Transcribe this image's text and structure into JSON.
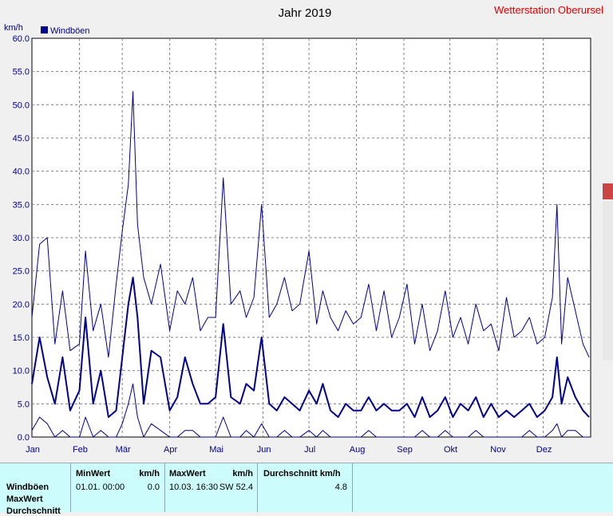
{
  "chart_data": {
    "type": "line",
    "title": "Jahr 2019",
    "ylabel": "km/h",
    "ylim": [
      0,
      60
    ],
    "yticks": [
      "0.0",
      "5.0",
      "10.0",
      "15.0",
      "20.0",
      "25.0",
      "30.0",
      "35.0",
      "40.0",
      "45.0",
      "50.0",
      "55.0",
      "60.0"
    ],
    "xlim": [
      0,
      365
    ],
    "months": [
      "Jan",
      "Feb",
      "Mär",
      "Apr",
      "Mai",
      "Jun",
      "Jul",
      "Aug",
      "Sep",
      "Okt",
      "Nov",
      "Dez"
    ],
    "month_starts": [
      0,
      31,
      59,
      90,
      120,
      151,
      181,
      212,
      243,
      273,
      304,
      334
    ],
    "grid": true,
    "legend": "top-left",
    "colors": {
      "series": "#00008b",
      "grid": "#808080",
      "title": "#000000"
    },
    "series": [
      {
        "name": "Windböen",
        "x": [
          0,
          5,
          10,
          15,
          20,
          25,
          31,
          35,
          40,
          45,
          50,
          55,
          59,
          63,
          66,
          69,
          73,
          78,
          84,
          90,
          95,
          100,
          105,
          110,
          115,
          120,
          125,
          130,
          136,
          140,
          145,
          150,
          155,
          160,
          165,
          170,
          175,
          181,
          186,
          190,
          195,
          200,
          205,
          210,
          215,
          220,
          225,
          230,
          235,
          240,
          245,
          250,
          255,
          260,
          265,
          270,
          275,
          280,
          285,
          290,
          295,
          300,
          305,
          310,
          315,
          320,
          325,
          330,
          335,
          340,
          343,
          346,
          350,
          355,
          360,
          364
        ],
        "max": [
          18,
          29,
          30,
          14,
          22,
          13,
          14,
          28,
          16,
          20,
          12,
          23,
          31,
          38,
          52,
          32,
          24,
          20,
          26,
          16,
          22,
          20,
          24,
          16,
          18,
          18,
          39,
          20,
          22,
          18,
          21,
          35,
          18,
          20,
          24,
          19,
          20,
          28,
          17,
          22,
          18,
          16,
          19,
          17,
          18,
          23,
          16,
          22,
          15,
          18,
          23,
          14,
          20,
          13,
          16,
          22,
          15,
          18,
          14,
          20,
          16,
          17,
          13,
          21,
          15,
          16,
          18,
          14,
          15,
          21,
          35,
          14,
          24,
          19,
          14,
          12
        ],
        "avg": [
          8,
          15,
          9,
          5,
          12,
          4,
          7,
          18,
          5,
          10,
          3,
          4,
          12,
          20,
          24,
          18,
          5,
          13,
          12,
          4,
          6,
          12,
          8,
          5,
          5,
          6,
          17,
          6,
          5,
          8,
          7,
          15,
          5,
          4,
          6,
          5,
          4,
          7,
          5,
          8,
          4,
          3,
          5,
          4,
          4,
          6,
          4,
          5,
          4,
          4,
          5,
          3,
          6,
          3,
          4,
          6,
          3,
          5,
          4,
          6,
          3,
          5,
          3,
          4,
          3,
          4,
          5,
          3,
          4,
          6,
          12,
          5,
          9,
          6,
          4,
          3
        ],
        "min": [
          1,
          3,
          2,
          0,
          1,
          0,
          0,
          3,
          0,
          1,
          0,
          0,
          2,
          5,
          8,
          3,
          0,
          2,
          1,
          0,
          0,
          1,
          1,
          0,
          0,
          0,
          3,
          0,
          0,
          1,
          0,
          2,
          0,
          0,
          1,
          0,
          0,
          1,
          0,
          1,
          0,
          0,
          0,
          0,
          0,
          1,
          0,
          0,
          0,
          0,
          0,
          0,
          1,
          0,
          0,
          1,
          0,
          0,
          0,
          1,
          0,
          0,
          0,
          0,
          0,
          0,
          1,
          0,
          0,
          1,
          2,
          0,
          1,
          1,
          0,
          0
        ]
      }
    ]
  },
  "header": {
    "station": "Wetterstation Oberursel"
  },
  "stats": {
    "row_labels": [
      "Windböen",
      "MaxWert",
      "Durchschnitt"
    ],
    "min_header": "MinWert",
    "min_unit": "km/h",
    "min_date": "01.01.  00:00",
    "min_value": "0.0",
    "max_header": "MaxWert",
    "max_unit": "km/h",
    "max_date": "10.03.  16:30",
    "max_value": "SW 52.4",
    "avg_header": "Durchschnitt km/h",
    "avg_value": "4.8"
  }
}
